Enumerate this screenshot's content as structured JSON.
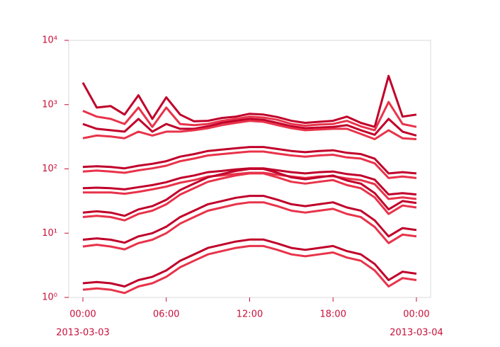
{
  "chart_data": {
    "type": "line",
    "log_y": true,
    "x": [
      0,
      1,
      2,
      3,
      4,
      5,
      6,
      7,
      8,
      9,
      10,
      11,
      12,
      13,
      14,
      15,
      16,
      17,
      18,
      19,
      20,
      21,
      22,
      23,
      24
    ],
    "xlim": [
      -1.02,
      25.02
    ],
    "xticks": [
      {
        "value": 0,
        "label": "00:00",
        "date": "2013-03-03"
      },
      {
        "value": 6,
        "label": "06:00"
      },
      {
        "value": 12,
        "label": "12:00"
      },
      {
        "value": 18,
        "label": "18:00"
      },
      {
        "value": 24,
        "label": "00:00",
        "date": "2013-03-04"
      }
    ],
    "ylim": [
      1,
      10000
    ],
    "yticks": [
      {
        "value": 1,
        "label": "10⁰"
      },
      {
        "value": 10,
        "label": "10¹"
      },
      {
        "value": 100,
        "label": "10²"
      },
      {
        "value": 1000,
        "label": "10³"
      },
      {
        "value": 10000,
        "label": "10⁴"
      }
    ],
    "series": [
      {
        "color": "#c0002a",
        "values": [
          2200,
          900,
          950,
          700,
          1400,
          600,
          1300,
          700,
          550,
          560,
          620,
          650,
          720,
          700,
          640,
          560,
          520,
          540,
          560,
          650,
          520,
          450,
          2800,
          650,
          700
        ]
      },
      {
        "color": "#e8334a",
        "values": [
          800,
          650,
          600,
          500,
          900,
          450,
          900,
          500,
          480,
          500,
          560,
          600,
          650,
          630,
          580,
          500,
          470,
          490,
          500,
          560,
          460,
          400,
          1100,
          500,
          450
        ]
      },
      {
        "color": "#c0002a",
        "values": [
          500,
          420,
          400,
          380,
          600,
          380,
          500,
          420,
          420,
          460,
          520,
          560,
          600,
          580,
          520,
          460,
          430,
          440,
          450,
          480,
          400,
          340,
          600,
          380,
          330
        ]
      },
      {
        "color": "#e8334a",
        "values": [
          300,
          330,
          320,
          300,
          380,
          330,
          380,
          380,
          400,
          430,
          480,
          520,
          560,
          540,
          480,
          430,
          400,
          410,
          420,
          420,
          350,
          290,
          400,
          300,
          290
        ]
      },
      {
        "color": "#c0002a",
        "values": [
          107,
          110,
          107,
          102,
          112,
          120,
          132,
          155,
          170,
          190,
          200,
          209,
          219,
          219,
          204,
          190,
          182,
          190,
          195,
          178,
          170,
          144,
          85,
          89,
          85
        ]
      },
      {
        "color": "#e8334a",
        "values": [
          91,
          94,
          91,
          87,
          95,
          102,
          112,
          132,
          145,
          162,
          170,
          178,
          186,
          186,
          173,
          162,
          155,
          162,
          166,
          151,
          145,
          122,
          72,
          76,
          72
        ]
      },
      {
        "color": "#c0002a",
        "values": [
          50,
          51,
          50,
          48,
          52,
          56,
          62,
          72,
          79,
          89,
          93,
          98,
          102,
          102,
          95,
          89,
          85,
          89,
          91,
          83,
          79,
          68,
          40,
          42,
          40
        ]
      },
      {
        "color": "#e8334a",
        "values": [
          43,
          43,
          43,
          41,
          44,
          48,
          53,
          61,
          67,
          76,
          79,
          83,
          87,
          87,
          81,
          76,
          72,
          76,
          77,
          71,
          67,
          58,
          34,
          36,
          34
        ]
      },
      {
        "color": "#c0002a",
        "values": [
          20.9,
          21.9,
          20.9,
          18.6,
          23.4,
          26.3,
          33.1,
          46.9,
          59,
          74,
          83,
          93,
          100,
          100,
          87,
          74,
          69,
          74,
          79,
          66,
          59,
          42,
          23.4,
          31.6,
          29.5
        ]
      },
      {
        "color": "#e8334a",
        "values": [
          17.8,
          18.6,
          17.8,
          15.8,
          19.9,
          22.4,
          28.1,
          39.9,
          50,
          63,
          71,
          79,
          85,
          85,
          74,
          63,
          59,
          63,
          67,
          56,
          50,
          36,
          19.9,
          26.9,
          25.1
        ]
      },
      {
        "color": "#c0002a",
        "values": [
          7.9,
          8.3,
          7.9,
          7.1,
          8.9,
          10,
          12.6,
          17.8,
          22.4,
          28.2,
          31.6,
          35.5,
          38,
          38,
          33.1,
          28.2,
          26.3,
          28.2,
          30.2,
          25.1,
          22.4,
          15.8,
          8.9,
          12,
          11.2
        ]
      },
      {
        "color": "#e8334a",
        "values": [
          6.2,
          6.6,
          6.2,
          5.6,
          7.0,
          7.9,
          10,
          14.1,
          17.8,
          22.4,
          25.1,
          28.2,
          30.2,
          30.2,
          26.3,
          22.4,
          20.9,
          22.4,
          23.9,
          19.9,
          17.8,
          12.5,
          7.0,
          9.5,
          8.9
        ]
      },
      {
        "color": "#c0002a",
        "values": [
          1.66,
          1.74,
          1.66,
          1.48,
          1.86,
          2.09,
          2.63,
          3.72,
          4.68,
          5.89,
          6.61,
          7.41,
          7.94,
          7.94,
          6.92,
          5.89,
          5.5,
          5.89,
          6.31,
          5.25,
          4.68,
          3.31,
          1.86,
          2.51,
          2.34
        ]
      },
      {
        "color": "#e8334a",
        "values": [
          1.32,
          1.38,
          1.32,
          1.17,
          1.48,
          1.66,
          2.09,
          2.95,
          3.72,
          4.68,
          5.25,
          5.89,
          6.31,
          6.31,
          5.5,
          4.68,
          4.37,
          4.68,
          5.01,
          4.17,
          3.72,
          2.63,
          1.48,
          2.0,
          1.86
        ]
      }
    ]
  }
}
